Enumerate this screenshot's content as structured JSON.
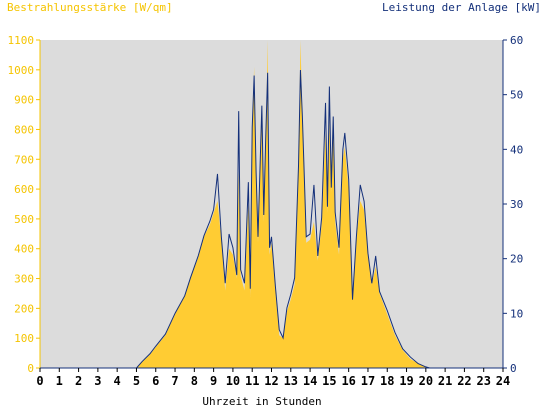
{
  "chart_data": {
    "type": "area",
    "title_left": "Bestrahlungsstärke [W/qm]",
    "title_right": "Leistung der Anlage [kW]",
    "xlabel": "Uhrzeit in Stunden",
    "xlim": [
      0,
      24
    ],
    "x_ticks": [
      "0",
      "1",
      "2",
      "3",
      "4",
      "5",
      "6",
      "7",
      "8",
      "9",
      "10",
      "11",
      "12",
      "13",
      "14",
      "15",
      "16",
      "17",
      "18",
      "19",
      "20",
      "21",
      "22",
      "23",
      "24"
    ],
    "ylim_left": [
      0,
      1100
    ],
    "y_ticks_left": [
      "0",
      "100",
      "200",
      "300",
      "400",
      "500",
      "600",
      "700",
      "800",
      "900",
      "1000",
      "1100"
    ],
    "ylim_right": [
      0,
      60
    ],
    "y_ticks_right": [
      "0",
      "10",
      "20",
      "30",
      "40",
      "50",
      "60"
    ],
    "grid": false,
    "series": [
      {
        "name": "Bestrahlungsstärke [W/qm]",
        "axis": "left",
        "style": "filled-area",
        "color": "#ffcc33",
        "points": [
          [
            0,
            0
          ],
          [
            5.0,
            0
          ],
          [
            5.3,
            20
          ],
          [
            5.7,
            45
          ],
          [
            6.0,
            70
          ],
          [
            6.5,
            110
          ],
          [
            7.0,
            180
          ],
          [
            7.5,
            240
          ],
          [
            7.8,
            300
          ],
          [
            8.2,
            370
          ],
          [
            8.5,
            440
          ],
          [
            8.8,
            480
          ],
          [
            9.0,
            520
          ],
          [
            9.2,
            560
          ],
          [
            9.4,
            430
          ],
          [
            9.6,
            260
          ],
          [
            9.8,
            400
          ],
          [
            10.0,
            380
          ],
          [
            10.2,
            300
          ],
          [
            10.3,
            660
          ],
          [
            10.4,
            310
          ],
          [
            10.6,
            260
          ],
          [
            10.8,
            550
          ],
          [
            10.9,
            240
          ],
          [
            11.0,
            800
          ],
          [
            11.1,
            1010
          ],
          [
            11.2,
            640
          ],
          [
            11.3,
            420
          ],
          [
            11.5,
            830
          ],
          [
            11.6,
            490
          ],
          [
            11.7,
            730
          ],
          [
            11.8,
            1100
          ],
          [
            11.9,
            380
          ],
          [
            12.0,
            420
          ],
          [
            12.2,
            260
          ],
          [
            12.4,
            110
          ],
          [
            12.6,
            100
          ],
          [
            12.8,
            190
          ],
          [
            13.0,
            230
          ],
          [
            13.2,
            280
          ],
          [
            13.4,
            650
          ],
          [
            13.5,
            1100
          ],
          [
            13.6,
            840
          ],
          [
            13.8,
            420
          ],
          [
            14.0,
            430
          ],
          [
            14.2,
            490
          ],
          [
            14.4,
            360
          ],
          [
            14.6,
            480
          ],
          [
            14.8,
            790
          ],
          [
            14.9,
            520
          ],
          [
            15.0,
            840
          ],
          [
            15.1,
            590
          ],
          [
            15.2,
            800
          ],
          [
            15.3,
            490
          ],
          [
            15.5,
            380
          ],
          [
            15.7,
            700
          ],
          [
            15.8,
            740
          ],
          [
            16.0,
            600
          ],
          [
            16.2,
            230
          ],
          [
            16.4,
            430
          ],
          [
            16.6,
            560
          ],
          [
            16.8,
            530
          ],
          [
            17.0,
            380
          ],
          [
            17.2,
            280
          ],
          [
            17.4,
            340
          ],
          [
            17.6,
            250
          ],
          [
            18.0,
            180
          ],
          [
            18.4,
            110
          ],
          [
            18.8,
            60
          ],
          [
            19.2,
            30
          ],
          [
            19.6,
            15
          ],
          [
            20.0,
            3
          ],
          [
            20.2,
            0
          ],
          [
            24,
            0
          ]
        ]
      },
      {
        "name": "Leistung der Anlage [kW]",
        "axis": "right",
        "style": "line",
        "color": "#14307a",
        "points": [
          [
            0,
            0
          ],
          [
            5.0,
            0
          ],
          [
            5.3,
            1.2
          ],
          [
            5.7,
            2.6
          ],
          [
            6.0,
            4.0
          ],
          [
            6.5,
            6.2
          ],
          [
            7.0,
            10.0
          ],
          [
            7.5,
            13.2
          ],
          [
            7.8,
            16.5
          ],
          [
            8.2,
            20.5
          ],
          [
            8.5,
            24.2
          ],
          [
            8.8,
            26.8
          ],
          [
            9.0,
            29.0
          ],
          [
            9.2,
            35.5
          ],
          [
            9.4,
            24.0
          ],
          [
            9.6,
            15.5
          ],
          [
            9.8,
            24.5
          ],
          [
            10.0,
            22.0
          ],
          [
            10.2,
            17.0
          ],
          [
            10.3,
            47.0
          ],
          [
            10.4,
            18.0
          ],
          [
            10.6,
            15.5
          ],
          [
            10.8,
            34.0
          ],
          [
            10.9,
            14.5
          ],
          [
            11.0,
            44.0
          ],
          [
            11.1,
            53.5
          ],
          [
            11.2,
            36.0
          ],
          [
            11.3,
            24.0
          ],
          [
            11.5,
            48.0
          ],
          [
            11.6,
            28.0
          ],
          [
            11.7,
            42.0
          ],
          [
            11.8,
            54.0
          ],
          [
            11.9,
            22.0
          ],
          [
            12.0,
            24.0
          ],
          [
            12.2,
            15.0
          ],
          [
            12.4,
            7.0
          ],
          [
            12.6,
            5.5
          ],
          [
            12.8,
            11.0
          ],
          [
            13.0,
            13.5
          ],
          [
            13.2,
            16.5
          ],
          [
            13.4,
            37.0
          ],
          [
            13.5,
            54.5
          ],
          [
            13.6,
            46.0
          ],
          [
            13.8,
            24.0
          ],
          [
            14.0,
            24.5
          ],
          [
            14.2,
            33.5
          ],
          [
            14.4,
            20.5
          ],
          [
            14.6,
            27.5
          ],
          [
            14.8,
            48.5
          ],
          [
            14.9,
            29.5
          ],
          [
            15.0,
            51.5
          ],
          [
            15.1,
            33.0
          ],
          [
            15.2,
            46.0
          ],
          [
            15.3,
            28.5
          ],
          [
            15.5,
            22.0
          ],
          [
            15.7,
            40.0
          ],
          [
            15.8,
            43.0
          ],
          [
            16.0,
            34.5
          ],
          [
            16.2,
            12.5
          ],
          [
            16.4,
            24.0
          ],
          [
            16.6,
            33.5
          ],
          [
            16.8,
            30.5
          ],
          [
            17.0,
            21.0
          ],
          [
            17.2,
            15.5
          ],
          [
            17.4,
            20.5
          ],
          [
            17.6,
            14.0
          ],
          [
            18.0,
            10.5
          ],
          [
            18.4,
            6.5
          ],
          [
            18.8,
            3.5
          ],
          [
            19.2,
            2.0
          ],
          [
            19.6,
            0.8
          ],
          [
            20.0,
            0.2
          ],
          [
            20.2,
            0
          ],
          [
            24,
            0
          ]
        ]
      }
    ],
    "colors": {
      "plot_background": "#dcdcdc",
      "left_axis": "#f5c400",
      "right_axis": "#14307a",
      "page_background": "#ffffff"
    }
  }
}
